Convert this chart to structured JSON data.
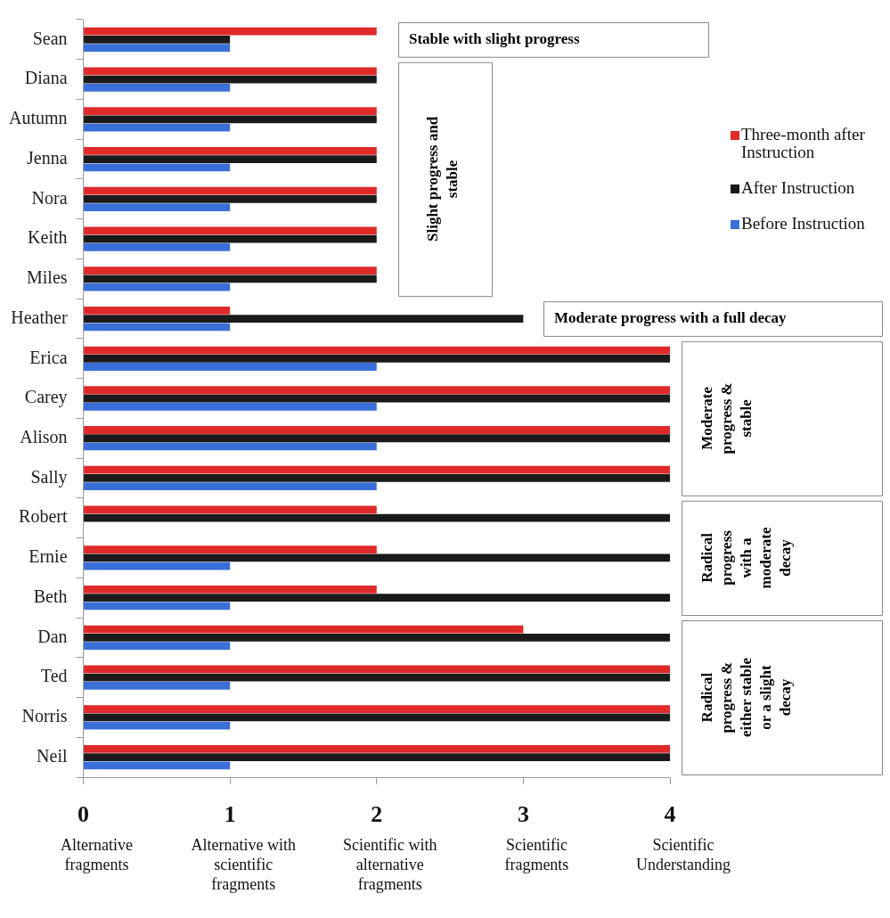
{
  "chart_data": {
    "type": "bar",
    "orientation": "horizontal",
    "categories": [
      "Sean",
      "Diana",
      "Autumn",
      "Jenna",
      "Nora",
      "Keith",
      "Miles",
      "Heather",
      "Erica",
      "Carey",
      "Alison",
      "Sally",
      "Robert",
      "Ernie",
      "Beth",
      "Dan",
      "Ted",
      "Norris",
      "Neil"
    ],
    "series": [
      {
        "name": "Three-month after Instruction",
        "color": "#e02a2a",
        "values": [
          2,
          2,
          2,
          2,
          2,
          2,
          2,
          1,
          4,
          4,
          4,
          4,
          2,
          2,
          2,
          3,
          4,
          4,
          4
        ]
      },
      {
        "name": "After Instruction",
        "color": "#1a1a1a",
        "values": [
          1,
          2,
          2,
          2,
          2,
          2,
          2,
          3,
          4,
          4,
          4,
          4,
          4,
          4,
          4,
          4,
          4,
          4,
          4
        ]
      },
      {
        "name": "Before Instruction",
        "color": "#3a6fd8",
        "values": [
          1,
          1,
          1,
          1,
          1,
          1,
          1,
          1,
          2,
          2,
          2,
          2,
          0,
          1,
          1,
          1,
          1,
          1,
          1
        ]
      }
    ],
    "xlim": [
      0,
      4
    ],
    "xticks": [
      0,
      1,
      2,
      3,
      4
    ],
    "legend": "right",
    "grid": false,
    "annotations": [
      "Alternative fragments",
      "Alternative with scientific fragments",
      "Scientific with alternative fragments",
      "Scientific fragments",
      "Scientific Understanding",
      "Stable with slight progress",
      "Slight progress and stable",
      "Moderate progress with a full decay",
      "Moderate progress & stable",
      "Radical progress with a moderate decay",
      "Radical progress & either stable or a slight decay"
    ]
  }
}
